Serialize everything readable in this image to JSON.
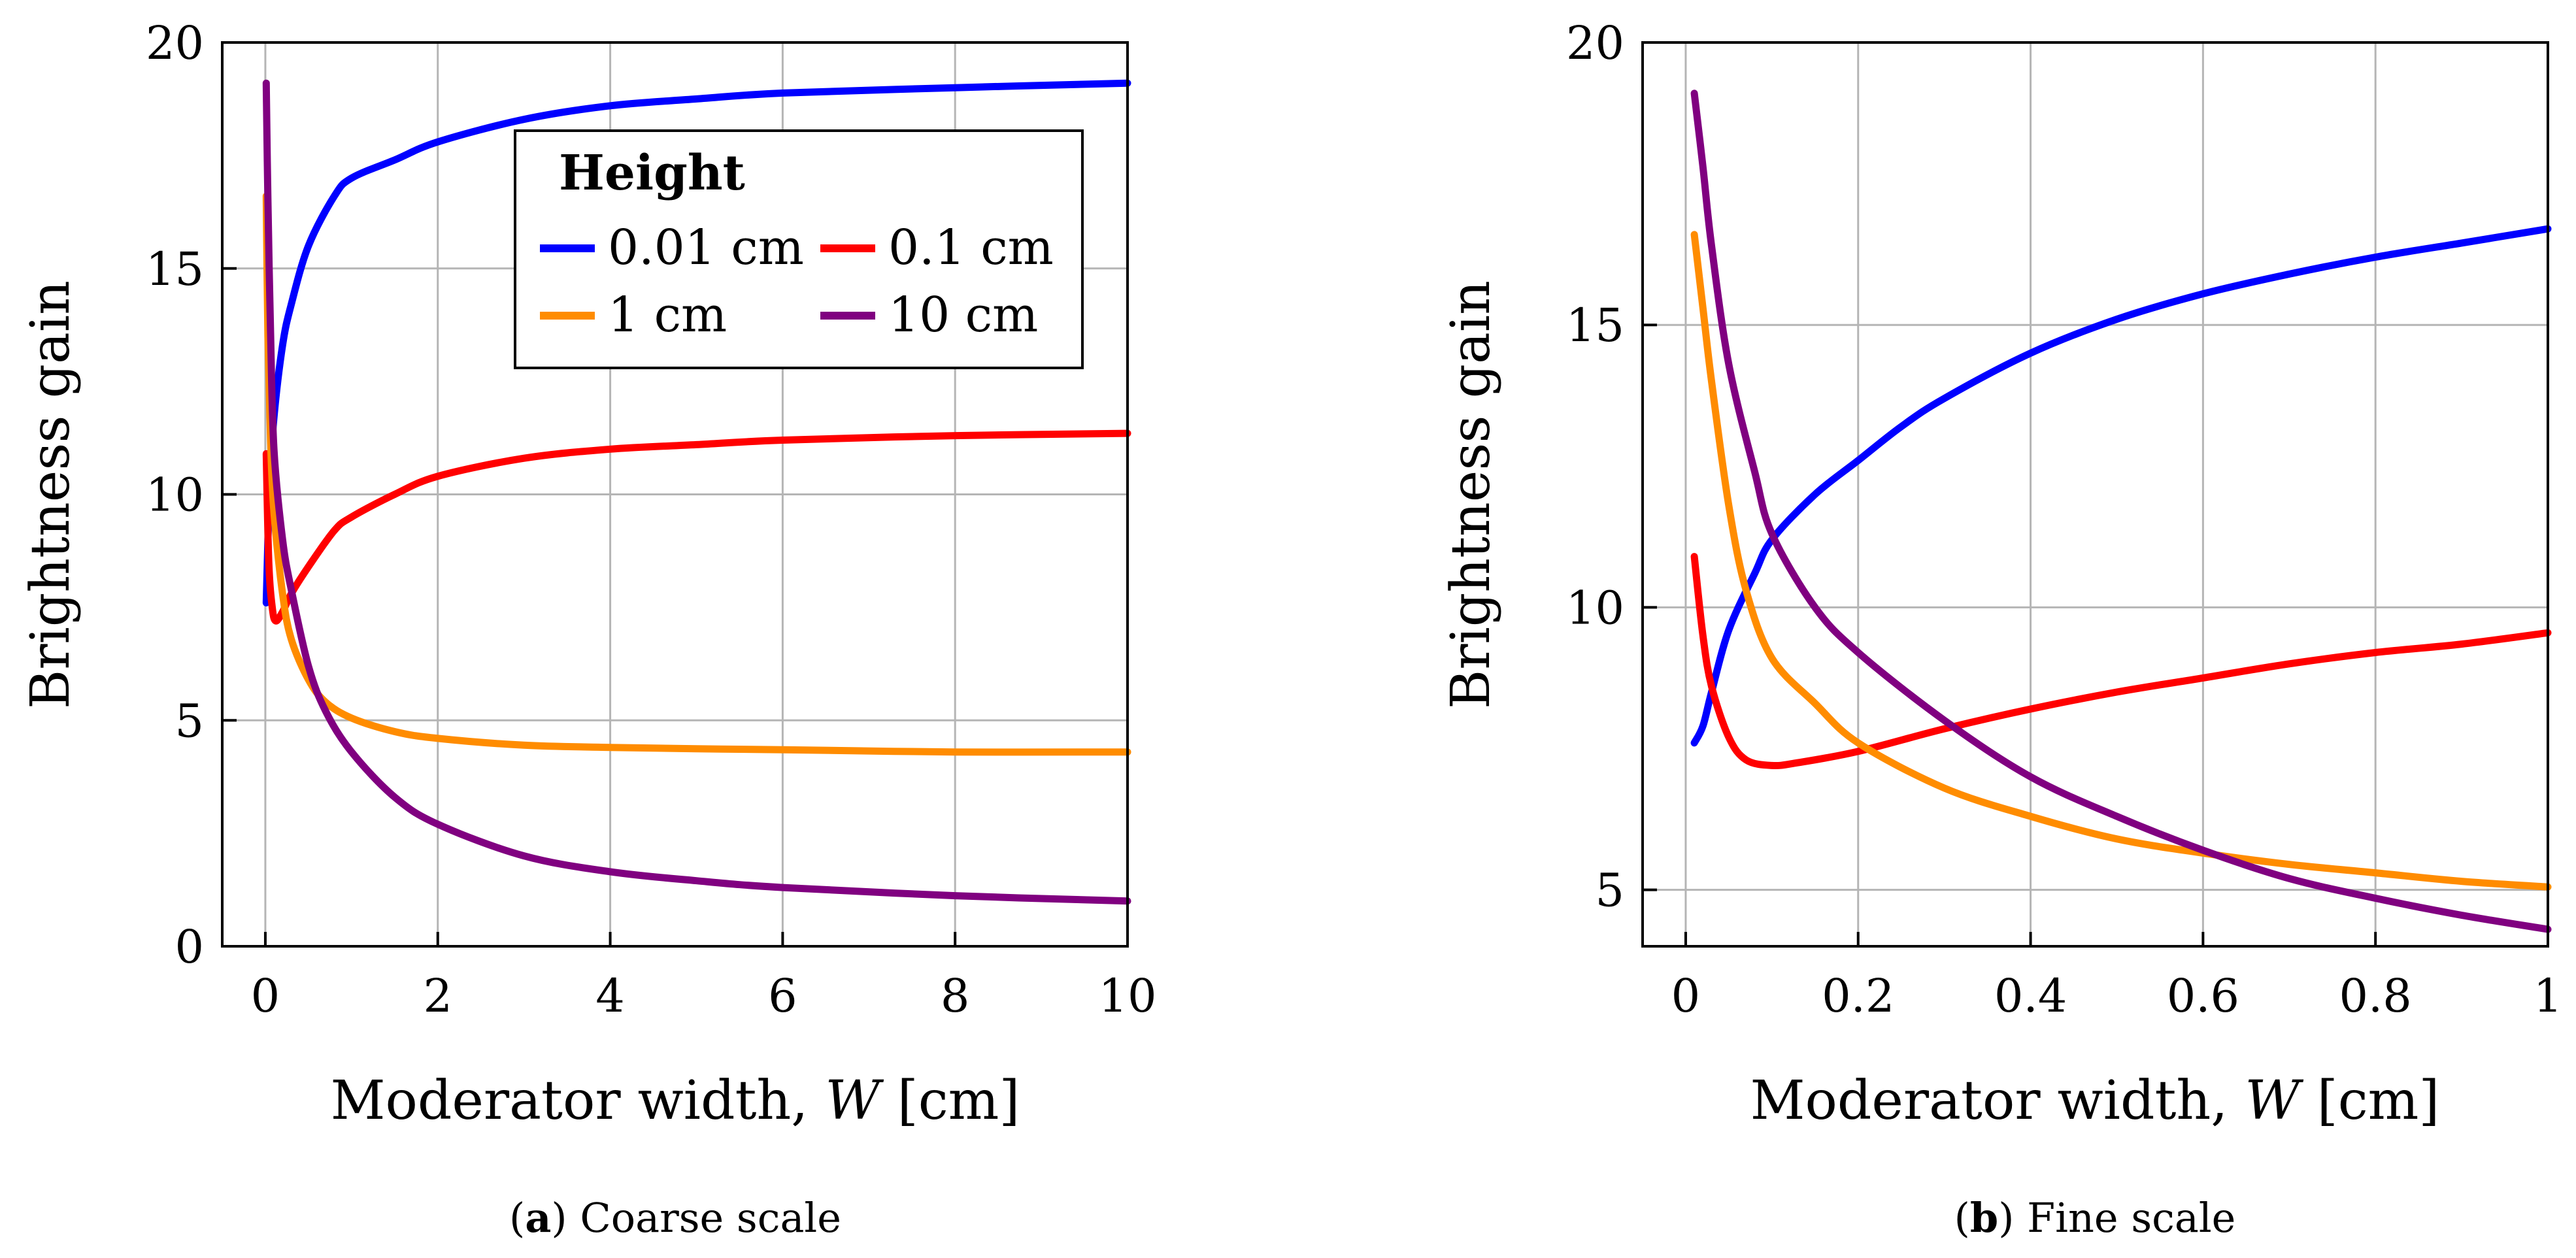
{
  "legend": {
    "title": "Height",
    "entries": [
      {
        "label": "0.01 cm",
        "color": "#0000ff"
      },
      {
        "label": "0.1 cm",
        "color": "#ff0000"
      },
      {
        "label": "1 cm",
        "color": "#ff8c00"
      },
      {
        "label": "10 cm",
        "color": "#800080"
      }
    ]
  },
  "chart_data": [
    {
      "id": "a",
      "type": "line",
      "caption_prefix": "(",
      "caption_letter": "a",
      "caption_suffix": ")",
      "caption_text": "Coarse scale",
      "xlabel_prefix": "Moderator width, ",
      "xlabel_var": "W",
      "xlabel_unit": " [cm]",
      "ylabel": "Brightness gain",
      "xlim": [
        -0.5,
        10
      ],
      "ylim": [
        0,
        20
      ],
      "xticks": [
        0,
        2,
        4,
        6,
        8,
        10
      ],
      "xtick_labels": [
        "0",
        "2",
        "4",
        "6",
        "8",
        "10"
      ],
      "yticks": [
        0,
        5,
        10,
        15,
        20
      ],
      "ytick_labels": [
        "0",
        "5",
        "10",
        "15",
        "20"
      ],
      "grid": true,
      "legend_position": "top-right",
      "series": [
        {
          "name": "0.01 cm",
          "color": "#0000ff",
          "x": [
            0.01,
            0.05,
            0.1,
            0.2,
            0.3,
            0.5,
            0.8,
            1.0,
            1.5,
            2.0,
            3.0,
            4.0,
            5.0,
            6.0,
            8.0,
            10.0
          ],
          "y": [
            7.6,
            10.2,
            11.7,
            13.3,
            14.2,
            15.5,
            16.6,
            17.0,
            17.4,
            17.8,
            18.3,
            18.6,
            18.75,
            18.88,
            19.0,
            19.1
          ]
        },
        {
          "name": "0.1 cm",
          "color": "#ff0000",
          "x": [
            0.01,
            0.04,
            0.08,
            0.12,
            0.2,
            0.3,
            0.5,
            0.8,
            1.0,
            1.5,
            2.0,
            3.0,
            4.0,
            5.0,
            6.0,
            8.0,
            10.0
          ],
          "y": [
            10.9,
            8.5,
            7.5,
            7.2,
            7.4,
            7.8,
            8.4,
            9.2,
            9.5,
            10.0,
            10.4,
            10.8,
            11.0,
            11.1,
            11.2,
            11.3,
            11.35
          ]
        },
        {
          "name": "1 cm",
          "color": "#ff8c00",
          "x": [
            0.01,
            0.03,
            0.06,
            0.1,
            0.2,
            0.3,
            0.5,
            0.7,
            1.0,
            1.5,
            2.0,
            3.0,
            4.0,
            5.0,
            6.0,
            8.0,
            10.0
          ],
          "y": [
            16.6,
            13.5,
            11.2,
            9.6,
            7.8,
            6.8,
            5.9,
            5.4,
            5.05,
            4.75,
            4.6,
            4.45,
            4.4,
            4.37,
            4.35,
            4.3,
            4.3
          ]
        },
        {
          "name": "10 cm",
          "color": "#800080",
          "x": [
            0.01,
            0.03,
            0.06,
            0.1,
            0.2,
            0.3,
            0.5,
            0.7,
            1.0,
            1.5,
            2.0,
            3.0,
            4.0,
            5.0,
            6.0,
            8.0,
            10.0
          ],
          "y": [
            19.1,
            16.5,
            13.6,
            11.0,
            9.0,
            7.9,
            6.2,
            5.2,
            4.3,
            3.3,
            2.7,
            2.0,
            1.65,
            1.45,
            1.3,
            1.12,
            1.0
          ]
        }
      ]
    },
    {
      "id": "b",
      "type": "line",
      "caption_prefix": "(",
      "caption_letter": "b",
      "caption_suffix": ")",
      "caption_text": "Fine scale",
      "xlabel_prefix": "Moderator width, ",
      "xlabel_var": "W",
      "xlabel_unit": " [cm]",
      "ylabel": "Brightness gain",
      "xlim": [
        -0.05,
        1
      ],
      "ylim": [
        4,
        20
      ],
      "xticks": [
        0,
        0.2,
        0.4,
        0.6,
        0.8,
        1.0
      ],
      "xtick_labels": [
        "0",
        "0.2",
        "0.4",
        "0.6",
        "0.8",
        "1"
      ],
      "yticks": [
        5,
        10,
        15,
        20
      ],
      "ytick_labels": [
        "5",
        "10",
        "15",
        "20"
      ],
      "grid": true,
      "series": [
        {
          "name": "0.01 cm",
          "color": "#0000ff",
          "x": [
            0.01,
            0.02,
            0.03,
            0.05,
            0.08,
            0.1,
            0.15,
            0.2,
            0.25,
            0.3,
            0.4,
            0.5,
            0.6,
            0.7,
            0.8,
            0.9,
            1.0
          ],
          "y": [
            7.6,
            7.9,
            8.5,
            9.6,
            10.6,
            11.2,
            12.0,
            12.6,
            13.2,
            13.7,
            14.5,
            15.1,
            15.55,
            15.9,
            16.2,
            16.45,
            16.7
          ]
        },
        {
          "name": "0.1 cm",
          "color": "#ff0000",
          "x": [
            0.01,
            0.02,
            0.03,
            0.05,
            0.07,
            0.1,
            0.13,
            0.2,
            0.3,
            0.4,
            0.5,
            0.6,
            0.7,
            0.8,
            0.9,
            1.0
          ],
          "y": [
            10.9,
            9.5,
            8.6,
            7.7,
            7.3,
            7.2,
            7.25,
            7.45,
            7.85,
            8.2,
            8.5,
            8.75,
            9.0,
            9.2,
            9.35,
            9.55
          ]
        },
        {
          "name": "1 cm",
          "color": "#ff8c00",
          "x": [
            0.01,
            0.02,
            0.03,
            0.05,
            0.07,
            0.1,
            0.15,
            0.2,
            0.3,
            0.4,
            0.5,
            0.6,
            0.7,
            0.8,
            0.9,
            1.0
          ],
          "y": [
            16.6,
            15.3,
            14.0,
            11.8,
            10.3,
            9.1,
            8.3,
            7.6,
            6.8,
            6.3,
            5.9,
            5.65,
            5.45,
            5.3,
            5.15,
            5.05
          ]
        },
        {
          "name": "10 cm",
          "color": "#800080",
          "x": [
            0.01,
            0.02,
            0.03,
            0.05,
            0.08,
            0.1,
            0.15,
            0.2,
            0.3,
            0.4,
            0.5,
            0.6,
            0.7,
            0.8,
            0.9,
            1.0
          ],
          "y": [
            19.1,
            17.8,
            16.4,
            14.3,
            12.4,
            11.3,
            10.0,
            9.2,
            8.0,
            7.0,
            6.3,
            5.7,
            5.2,
            4.85,
            4.55,
            4.3
          ]
        }
      ]
    }
  ]
}
